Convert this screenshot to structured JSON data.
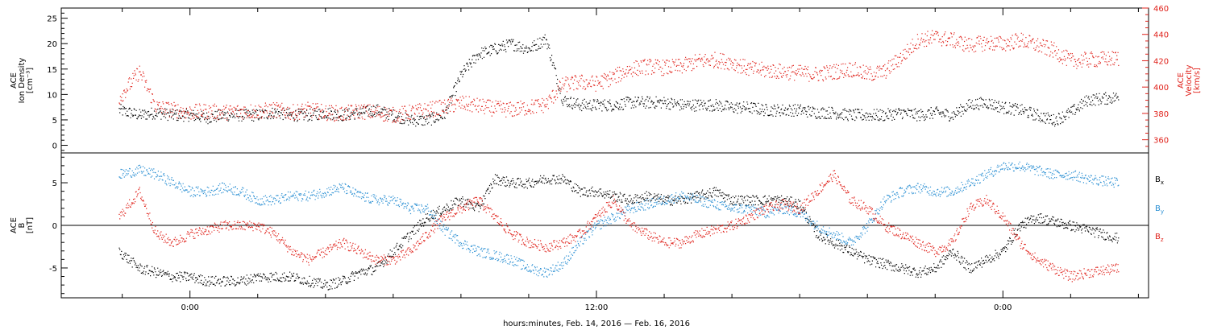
{
  "chart_data": [
    {
      "type": "scatter",
      "panel": "ion-density-velocity",
      "ylabel_left_lines": [
        "ACE",
        "Ion Density",
        "[cm⁻³]"
      ],
      "ylabel_right_lines": [
        "ACE",
        "Velocity",
        "[km/s]"
      ],
      "left_axis": {
        "ylim": [
          -1.5,
          27
        ],
        "ticks": [
          0,
          5,
          10,
          15,
          20,
          25
        ],
        "tick_labels": [
          "0",
          "5",
          "10",
          "15",
          "20",
          "25"
        ]
      },
      "right_axis": {
        "ylim": [
          350,
          460
        ],
        "ticks": [
          360,
          380,
          400,
          420,
          440,
          460
        ],
        "tick_labels": [
          "360",
          "380",
          "400",
          "420",
          "440",
          "460"
        ]
      },
      "colors": {
        "density": "#000000",
        "velocity": "#e0221b"
      },
      "series": [
        {
          "axis": "left",
          "x_hours": [
            -2.1,
            -1.5,
            -1.0,
            -0.5,
            0,
            0.5,
            1,
            1.5,
            2,
            2.5,
            3,
            3.5,
            4,
            4.5,
            5,
            5.5,
            6,
            6.5,
            7,
            7.5,
            8,
            8.5,
            9,
            9.5,
            10,
            10.5,
            11,
            11.5,
            12,
            12.5,
            13,
            13.5,
            14,
            14.5,
            15,
            15.5,
            16,
            16.5,
            17,
            17.5,
            18,
            18.5,
            19,
            19.5,
            20,
            20.5,
            21,
            21.5,
            22,
            22.5,
            23,
            23.5,
            24,
            24.5,
            25,
            25.5,
            26,
            26.5,
            27.4
          ],
          "values": [
            7,
            6,
            6.5,
            6,
            6,
            5.5,
            6,
            6,
            6,
            6.5,
            6,
            6,
            6.5,
            6,
            6.5,
            7,
            6,
            5,
            5,
            6,
            14,
            18,
            19,
            20,
            19,
            21,
            9,
            8,
            8,
            8,
            8.5,
            8.5,
            8.5,
            8,
            8,
            8,
            7.5,
            7.5,
            7,
            7,
            7,
            6.5,
            6.5,
            6,
            6,
            6,
            6.5,
            6,
            6.5,
            6,
            8,
            8.5,
            7.5,
            7,
            6,
            5,
            6.5,
            9,
            9.5
          ]
        },
        {
          "axis": "right",
          "x_hours": [
            -2.1,
            -1.5,
            -1.0,
            -0.5,
            0,
            0.5,
            1,
            1.5,
            2,
            2.5,
            3,
            3.5,
            4,
            4.5,
            5,
            5.5,
            6,
            6.5,
            7,
            7.5,
            8,
            8.5,
            9,
            9.5,
            10,
            10.5,
            11,
            11.5,
            12,
            12.5,
            13,
            13.5,
            14,
            14.5,
            15,
            15.5,
            16,
            16.5,
            17,
            17.5,
            18,
            18.5,
            19,
            19.5,
            20,
            20.5,
            21,
            21.5,
            22,
            22.5,
            23,
            23.5,
            24,
            24.5,
            25,
            25.5,
            26,
            26.5,
            27.4
          ],
          "values": [
            392,
            412,
            385,
            383,
            381,
            382,
            381,
            382,
            382,
            383,
            381,
            383,
            381,
            380,
            382,
            381,
            379,
            381,
            383,
            385,
            388,
            386,
            384,
            383,
            385,
            387,
            402,
            404,
            403,
            408,
            414,
            416,
            415,
            416,
            420,
            421,
            419,
            414,
            413,
            412,
            411,
            410,
            412,
            414,
            410,
            412,
            423,
            436,
            438,
            436,
            432,
            434,
            433,
            436,
            432,
            428,
            420,
            421,
            422
          ]
        }
      ]
    },
    {
      "type": "line",
      "panel": "magnetic-field",
      "ylabel_lines": [
        "ACE",
        "B",
        "[nT]"
      ],
      "ylim": [
        -8.5,
        8.5
      ],
      "ticks": [
        -5,
        0,
        5
      ],
      "tick_labels": [
        "-5",
        "0",
        "5"
      ],
      "legend_position": "right",
      "series": [
        {
          "name": "B",
          "sub": "x",
          "color": "#000000",
          "x_hours": [
            -2.1,
            -1.5,
            -1.0,
            -0.5,
            0,
            0.5,
            1,
            1.5,
            2,
            2.5,
            3,
            3.5,
            4,
            4.5,
            5,
            5.5,
            6,
            6.5,
            7,
            7.5,
            8,
            8.5,
            9,
            9.5,
            10,
            10.5,
            11,
            11.5,
            12,
            12.5,
            13,
            13.5,
            14,
            14.5,
            15,
            15.5,
            16,
            16.5,
            17,
            17.5,
            18,
            18.5,
            19,
            19.5,
            20,
            20.5,
            21,
            21.5,
            22,
            22.5,
            23,
            23.5,
            24,
            24.5,
            25,
            25.5,
            26,
            26.5,
            27.4
          ],
          "values": [
            -3,
            -5,
            -5.5,
            -6,
            -6,
            -6.5,
            -6.5,
            -6.5,
            -6,
            -6,
            -6,
            -6.5,
            -7,
            -6.5,
            -5.5,
            -5,
            -3,
            -1,
            1,
            2,
            3,
            2,
            5.5,
            5,
            5,
            5.5,
            5.5,
            4,
            4,
            3.5,
            3,
            3.5,
            3,
            3,
            3.5,
            4,
            3,
            3,
            3,
            3,
            2.5,
            -1,
            -2,
            -3,
            -4,
            -4.5,
            -5,
            -5.5,
            -5,
            -3,
            -5,
            -4,
            -3,
            0,
            1,
            0.5,
            0,
            -0.5,
            -1.5
          ]
        },
        {
          "name": "B",
          "sub": "y",
          "color": "#2a8fd3",
          "x_hours": [
            -2.1,
            -1.5,
            -1.0,
            -0.5,
            0,
            0.5,
            1,
            1.5,
            2,
            2.5,
            3,
            3.5,
            4,
            4.5,
            5,
            5.5,
            6,
            6.5,
            7,
            7.5,
            8,
            8.5,
            9,
            9.5,
            10,
            10.5,
            11,
            11.5,
            12,
            12.5,
            13,
            13.5,
            14,
            14.5,
            15,
            15.5,
            16,
            16.5,
            17,
            17.5,
            18,
            18.5,
            19,
            19.5,
            20,
            20.5,
            21,
            21.5,
            22,
            22.5,
            23,
            23.5,
            24,
            24.5,
            25,
            25.5,
            26,
            26.5,
            27.4
          ],
          "values": [
            6,
            6.5,
            6,
            5,
            4,
            4,
            4.5,
            4,
            3,
            3,
            3.5,
            3.5,
            4,
            4.5,
            3.5,
            3,
            3,
            2,
            2,
            -0.5,
            -2,
            -3,
            -3.5,
            -4,
            -5,
            -5.5,
            -4.5,
            -2,
            0,
            1,
            2,
            2.5,
            3,
            3.5,
            3,
            2.5,
            2,
            2,
            1.5,
            2,
            1.5,
            0,
            -1,
            -2,
            0,
            3,
            4,
            4.5,
            4,
            4,
            5,
            6,
            7,
            7,
            6.5,
            6,
            6,
            5.5,
            5
          ]
        },
        {
          "name": "B",
          "sub": "z",
          "color": "#e0221b",
          "x_hours": [
            -2.1,
            -1.5,
            -1.0,
            -0.5,
            0,
            0.5,
            1,
            1.5,
            2,
            2.5,
            3,
            3.5,
            4,
            4.5,
            5,
            5.5,
            6,
            6.5,
            7,
            7.5,
            8,
            8.5,
            9,
            9.5,
            10,
            10.5,
            11,
            11.5,
            12,
            12.5,
            13,
            13.5,
            14,
            14.5,
            15,
            15.5,
            16,
            16.5,
            17,
            17.5,
            18,
            18.5,
            19,
            19.5,
            20,
            20.5,
            21,
            21.5,
            22,
            22.5,
            23,
            23.5,
            24,
            24.5,
            25,
            25.5,
            26,
            26.5,
            27.4
          ],
          "values": [
            1,
            4,
            -1,
            -2,
            -1,
            -0.5,
            0,
            0,
            0,
            -1,
            -3,
            -4,
            -3,
            -2,
            -3,
            -4,
            -4,
            -3,
            -1,
            1,
            2,
            3,
            1,
            -1,
            -2,
            -2.5,
            -2,
            -1,
            1,
            3,
            0,
            -1,
            -2,
            -2,
            -1,
            -0.5,
            0,
            1,
            2,
            2.5,
            2,
            4,
            6,
            3,
            2,
            0,
            -1,
            -2,
            -3,
            -2,
            2,
            3,
            1,
            -2,
            -4,
            -5,
            -6,
            -5.5,
            -5
          ]
        }
      ]
    }
  ],
  "x_axis": {
    "label": "hours:minutes, Feb. 14, 2016 — Feb. 16, 2016",
    "range_hours": [
      -3.8,
      28.3
    ],
    "major_ticks": [
      {
        "h": 0,
        "label": "0:00"
      },
      {
        "h": 12,
        "label": "12:00"
      },
      {
        "h": 24,
        "label": "0:00"
      }
    ],
    "minor_tick_step_hours": 2
  }
}
